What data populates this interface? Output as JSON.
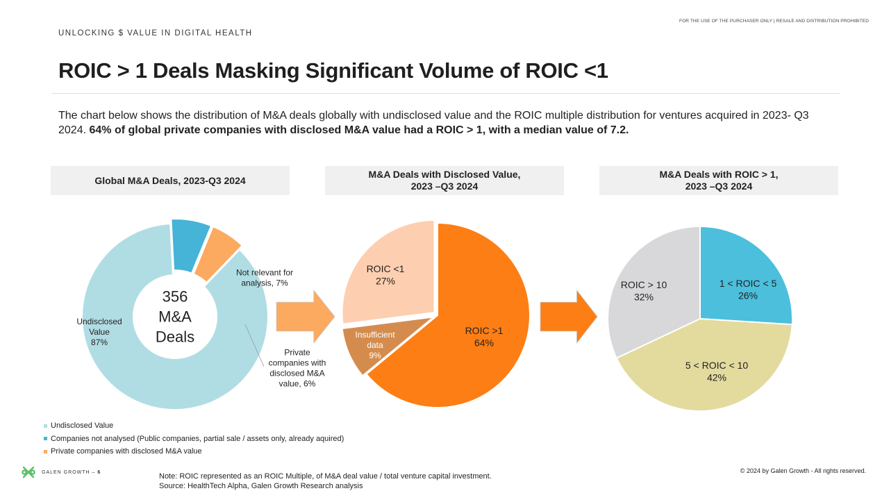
{
  "header": {
    "disclaimer": "FOR THE USE OF THE PURCHASER ONLY | RESALE AND DISTRIBUTION PROHIBITED",
    "kicker": "UNLOCKING $ VALUE IN DIGITAL HEALTH",
    "title": "ROIC > 1 Deals Masking Significant Volume of ROIC <1"
  },
  "intro": {
    "text": "The chart below shows the distribution of M&A deals globally with undisclosed value and the ROIC multiple distribution for ventures acquired in 2023- Q3 2024. ",
    "bold": "64% of global private companies with disclosed M&A value had a ROIC > 1, with a median value of 7.2."
  },
  "colors": {
    "undisclosed": "#b0dde4",
    "not_relevant": "#45b4d6",
    "private": "#fbaa60",
    "roic_gt1": "#fd7e14",
    "roic_lt1": "#fdcfb0",
    "insufficient": "#d48c4e",
    "r1_5": "#4bbfdc",
    "r5_10": "#e3da9e",
    "r10": "#d8d8da",
    "arrow1": "#fbaa60",
    "arrow2": "#fd7e14"
  },
  "chart_data": [
    {
      "type": "pie",
      "variant": "donut",
      "title": "Global M&A Deals, 2023-Q3 2024",
      "center_label": [
        "356",
        "M&A",
        "Deals"
      ],
      "slices": [
        {
          "label": [
            "Undisclosed",
            "Value",
            "87%"
          ],
          "value": 87,
          "color": "#b0dde4"
        },
        {
          "label": [
            "Not relevant for",
            "analysis, 7%"
          ],
          "value": 7,
          "color": "#45b4d6"
        },
        {
          "label": [
            "Private",
            "companies with",
            "disclosed M&A",
            "value, 6%"
          ],
          "value": 6,
          "color": "#fbaa60"
        }
      ]
    },
    {
      "type": "pie",
      "title": "M&A Deals with Disclosed Value,\n2023 –Q3 2024",
      "slices": [
        {
          "label": [
            "ROIC >1",
            "64%"
          ],
          "value": 64,
          "color": "#fd7e14"
        },
        {
          "label": [
            "Insufficient",
            "data",
            "9%"
          ],
          "value": 9,
          "color": "#d48c4e"
        },
        {
          "label": [
            "ROIC <1",
            "27%"
          ],
          "value": 27,
          "color": "#fdcfb0"
        }
      ]
    },
    {
      "type": "pie",
      "title": "M&A Deals with ROIC > 1,\n2023 –Q3 2024",
      "slices": [
        {
          "label": [
            "1 < ROIC < 5",
            "26%"
          ],
          "value": 26,
          "color": "#4bbfdc"
        },
        {
          "label": [
            "5 < ROIC < 10",
            "42%"
          ],
          "value": 42,
          "color": "#e3da9e"
        },
        {
          "label": [
            "ROIC > 10",
            "32%"
          ],
          "value": 32,
          "color": "#d8d8da"
        }
      ]
    }
  ],
  "legend": [
    {
      "label": "Undisclosed Value",
      "color": "#b0dde4"
    },
    {
      "label": "Companies not analysed (Public companies, partial sale / assets only, already aquired)",
      "color": "#45b4d6"
    },
    {
      "label": "Private companies with disclosed M&A value",
      "color": "#fbaa60"
    }
  ],
  "footer": {
    "brand": "GALEN GROWTH",
    "page": "6",
    "note_line1": "Note: ROIC represented as an ROIC Multiple, of M&A deal value / total venture capital investment.",
    "note_line2": "Source: HealthTech Alpha, Galen Growth Research analysis",
    "copyright": "© 2024 by Galen Growth  - All rights reserved."
  }
}
